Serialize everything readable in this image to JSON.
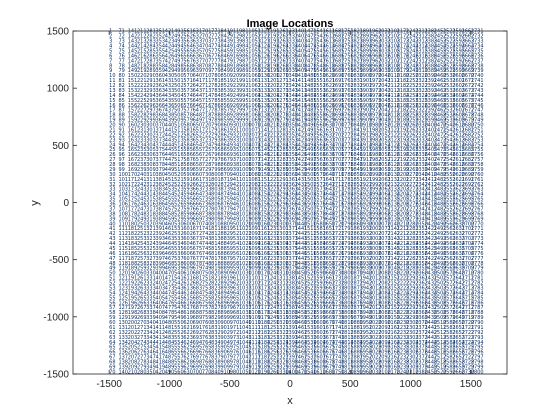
{
  "chart_data": {
    "type": "scatter",
    "title": "Image Locations",
    "xlabel": "x",
    "ylabel": "y",
    "xlim": [
      -1800,
      1800
    ],
    "ylim": [
      -1500,
      1500
    ],
    "xticks": [
      -1500,
      -1000,
      -500,
      0,
      500,
      1000,
      1500
    ],
    "yticks": [
      -1500,
      -1000,
      -500,
      0,
      500,
      1000,
      1500
    ],
    "xtick_labels": [
      "-1500",
      "-1000",
      "-500",
      "0",
      "500",
      "1000",
      "1500"
    ],
    "ytick_labels": [
      "-1500",
      "-1000",
      "-500",
      "0",
      "500",
      "1000",
      "1500"
    ],
    "grid": false,
    "box": true,
    "marker_color": "#0a2f66",
    "label_grid": {
      "x_min": -1500,
      "x_max": 1500,
      "y_min": -1480,
      "y_max": 1500,
      "columns": 40,
      "rows": 70,
      "first_label": 1,
      "last_label": 2800,
      "numbering": "column-major, top to bottom within each column"
    }
  }
}
